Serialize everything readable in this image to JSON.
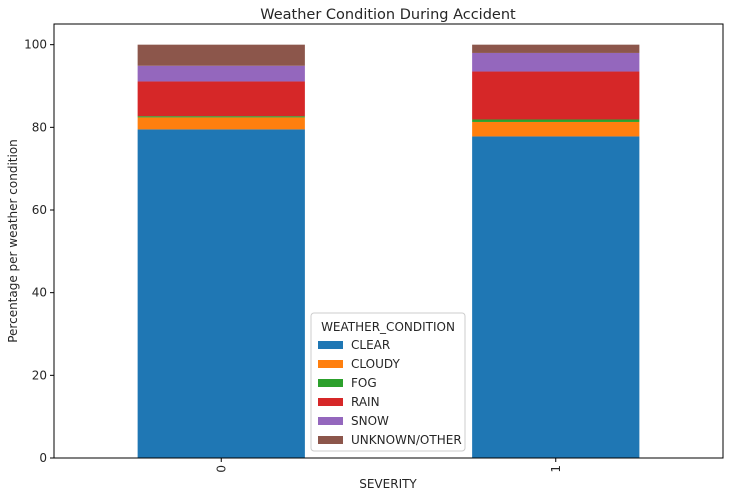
{
  "chart_data": {
    "type": "bar",
    "stacked": true,
    "title": "Weather Condition During Accident",
    "xlabel": "SEVERITY",
    "ylabel": "Percentage per weather condition",
    "categories": [
      "0",
      "1"
    ],
    "ylim": [
      0,
      105
    ],
    "yticks": [
      0,
      20,
      40,
      60,
      80,
      100
    ],
    "grid": false,
    "legend": {
      "title": "WEATHER_CONDITION",
      "placement": "bottom-center"
    },
    "series": [
      {
        "name": "CLEAR",
        "color": "#1f77b4",
        "values": [
          79.5,
          77.8
        ]
      },
      {
        "name": "CLOUDY",
        "color": "#ff7f0e",
        "values": [
          2.9,
          3.5
        ]
      },
      {
        "name": "FOG",
        "color": "#2ca02c",
        "values": [
          0.3,
          0.6
        ]
      },
      {
        "name": "RAIN",
        "color": "#d62728",
        "values": [
          8.4,
          11.6
        ]
      },
      {
        "name": "SNOW",
        "color": "#9467bd",
        "values": [
          3.8,
          4.5
        ]
      },
      {
        "name": "UNKNOWN/OTHER",
        "color": "#8c564b",
        "values": [
          5.1,
          2.0
        ]
      }
    ]
  }
}
